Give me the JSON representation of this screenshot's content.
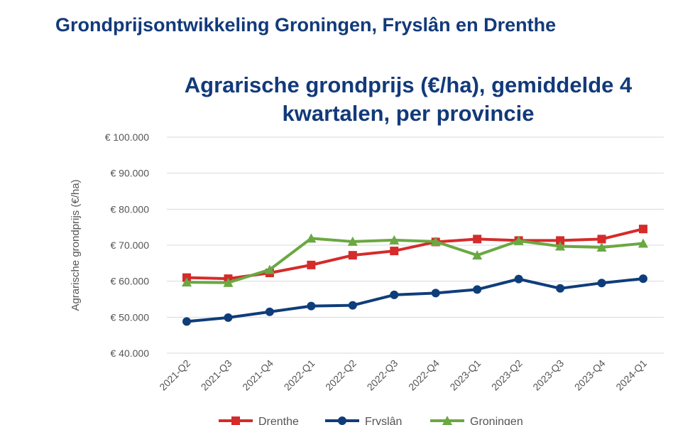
{
  "page": {
    "heading": "Grondprijsontwikkeling Groningen, Fryslân en Drenthe"
  },
  "chart_data": {
    "type": "line",
    "title": "Agrarische grondprijs (€/ha), gemiddelde 4 kwartalen, per provincie",
    "title_lines": [
      "Agrarische grondprijs (€/ha), gemiddelde 4",
      "kwartalen, per provincie"
    ],
    "ylabel": "Agrarische grondprijs (€/ha)",
    "xlabel": "",
    "ylim": [
      40000,
      100000
    ],
    "yticks": [
      40000,
      50000,
      60000,
      70000,
      80000,
      90000,
      100000
    ],
    "ytick_labels": [
      "€ 40.000",
      "€ 50.000",
      "€ 60.000",
      "€ 70.000",
      "€ 80.000",
      "€ 90.000",
      "€ 100.000"
    ],
    "grid": true,
    "legend": "bottom",
    "categories": [
      "2021-Q2",
      "2021-Q3",
      "2021-Q4",
      "2022-Q1",
      "2022-Q2",
      "2022-Q3",
      "2022-Q4",
      "2023-Q1",
      "2023-Q2",
      "2023-Q3",
      "2023-Q4",
      "2024-Q1"
    ],
    "series": [
      {
        "name": "Drenthe",
        "color": "#d52b2b",
        "marker": "square",
        "values": [
          61000,
          60700,
          62300,
          64500,
          67200,
          68400,
          70900,
          71700,
          71300,
          71300,
          71700,
          74500
        ]
      },
      {
        "name": "Fryslân",
        "color": "#0f3d7a",
        "marker": "circle",
        "values": [
          48800,
          49900,
          51500,
          53100,
          53300,
          56200,
          56700,
          57700,
          60600,
          58000,
          59500,
          60700
        ]
      },
      {
        "name": "Groningen",
        "color": "#6aa842",
        "marker": "triangle",
        "values": [
          59700,
          59600,
          63200,
          71900,
          71000,
          71400,
          71000,
          67200,
          71200,
          69700,
          69400,
          70500
        ]
      }
    ]
  }
}
